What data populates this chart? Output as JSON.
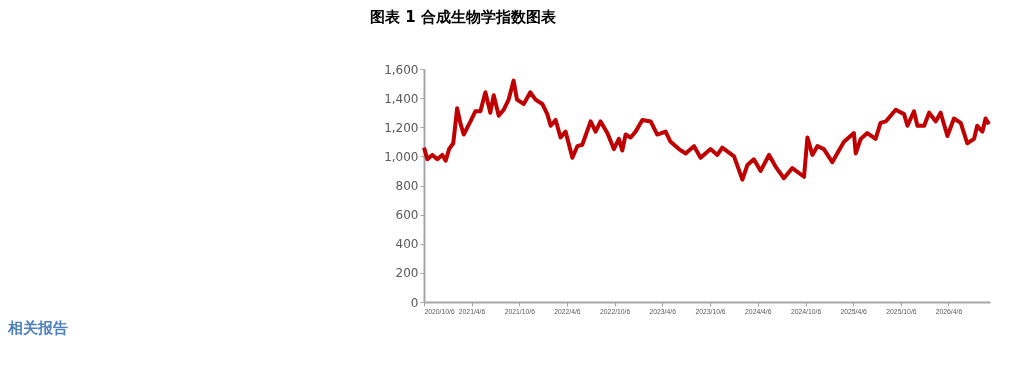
{
  "chart_data": {
    "type": "line",
    "title": "图表 1 合成生物学指数图表",
    "x": [
      "2020-10-06",
      "2020-10-19",
      "2020-11-07",
      "2020-11-26",
      "2020-12-15",
      "2020-12-28",
      "2021-01-10",
      "2021-01-26",
      "2021-02-10",
      "2021-02-22",
      "2021-03-07",
      "2021-04-02",
      "2021-04-21",
      "2021-05-10",
      "2021-05-29",
      "2021-06-17",
      "2021-06-30",
      "2021-07-19",
      "2021-08-07",
      "2021-08-26",
      "2021-09-14",
      "2021-09-27",
      "2021-10-23",
      "2021-11-17",
      "2021-12-07",
      "2022-01-02",
      "2022-01-21",
      "2022-02-03",
      "2022-02-22",
      "2022-03-13",
      "2022-04-01",
      "2022-04-27",
      "2022-05-16",
      "2022-06-04",
      "2022-07-06",
      "2022-07-25",
      "2022-08-13",
      "2022-09-08",
      "2022-10-03",
      "2022-10-22",
      "2022-11-04",
      "2022-11-17",
      "2022-12-06",
      "2022-12-25",
      "2023-01-20",
      "2023-02-21",
      "2023-03-18",
      "2023-04-19",
      "2023-05-08",
      "2023-06-09",
      "2023-07-05",
      "2023-07-24",
      "2023-08-06",
      "2023-08-31",
      "2023-10-08",
      "2023-11-03",
      "2023-11-22",
      "2024-01-06",
      "2024-02-07",
      "2024-02-26",
      "2024-03-22",
      "2024-04-17",
      "2024-05-19",
      "2024-06-13",
      "2024-07-15",
      "2024-08-16",
      "2024-09-30",
      "2024-10-13",
      "2024-11-01",
      "2024-11-20",
      "2024-12-15",
      "2025-01-16",
      "2025-02-04",
      "2025-03-02",
      "2025-04-09",
      "2025-04-16",
      "2025-05-05",
      "2025-05-30",
      "2025-07-01",
      "2025-07-20",
      "2025-08-09",
      "2025-09-16",
      "2025-10-18",
      "2025-10-31",
      "2025-11-25",
      "2025-12-08",
      "2026-01-03",
      "2026-01-22",
      "2026-02-16",
      "2026-03-07",
      "2026-04-02",
      "2026-04-27",
      "2026-05-23",
      "2026-06-17",
      "2026-07-13",
      "2026-07-25",
      "2026-08-14",
      "2026-08-26",
      "2026-09-08"
    ],
    "series": [
      {
        "color": "#c00000",
        "values": [
          1060,
          980,
          1010,
          980,
          1010,
          970,
          1050,
          1090,
          1330,
          1230,
          1150,
          1240,
          1310,
          1310,
          1440,
          1300,
          1420,
          1280,
          1320,
          1390,
          1520,
          1390,
          1360,
          1440,
          1390,
          1360,
          1290,
          1210,
          1250,
          1130,
          1170,
          990,
          1070,
          1080,
          1240,
          1170,
          1240,
          1160,
          1050,
          1120,
          1040,
          1150,
          1130,
          1170,
          1250,
          1240,
          1150,
          1170,
          1100,
          1050,
          1020,
          1050,
          1070,
          990,
          1050,
          1010,
          1060,
          1000,
          840,
          940,
          980,
          900,
          1010,
          930,
          850,
          920,
          860,
          1130,
          1010,
          1070,
          1050,
          960,
          1020,
          1100,
          1160,
          1020,
          1120,
          1160,
          1120,
          1230,
          1240,
          1320,
          1290,
          1210,
          1310,
          1210,
          1210,
          1300,
          1240,
          1300,
          1140,
          1260,
          1230,
          1090,
          1120,
          1210,
          1170,
          1260,
          1220
        ]
      }
    ],
    "xlim": [
      "2020-10-06",
      "2026-09-12"
    ],
    "xticks": [
      {
        "value": "2020-10-06",
        "label": "2020/10/6"
      },
      {
        "value": "2021-04-06",
        "label": "2021/4/6"
      },
      {
        "value": "2021-10-06",
        "label": "2021/10/6"
      },
      {
        "value": "2022-04-06",
        "label": "2022/4/6"
      },
      {
        "value": "2022-10-06",
        "label": "2022/10/6"
      },
      {
        "value": "2023-04-06",
        "label": "2023/4/6"
      },
      {
        "value": "2023-10-06",
        "label": "2023/10/6"
      },
      {
        "value": "2024-04-06",
        "label": "2024/4/6"
      },
      {
        "value": "2024-10-06",
        "label": "2024/10/6"
      },
      {
        "value": "2025-04-06",
        "label": "2025/4/6"
      },
      {
        "value": "2025-10-06",
        "label": "2025/10/6"
      },
      {
        "value": "2026-04-06",
        "label": "2026/4/6"
      }
    ],
    "ylim": [
      0,
      1600
    ],
    "yticks": [
      {
        "value": 0,
        "label": "0"
      },
      {
        "value": 200,
        "label": "200"
      },
      {
        "value": 400,
        "label": "400"
      },
      {
        "value": 600,
        "label": "600"
      },
      {
        "value": 800,
        "label": "800"
      },
      {
        "value": 1000,
        "label": "1,000"
      },
      {
        "value": 1200,
        "label": "1,200"
      },
      {
        "value": 1400,
        "label": "1,400"
      },
      {
        "value": 1600,
        "label": "1,600"
      }
    ],
    "grid": false,
    "marker": "none",
    "line_style": "solid",
    "annotations": [
      "相关报告"
    ]
  }
}
